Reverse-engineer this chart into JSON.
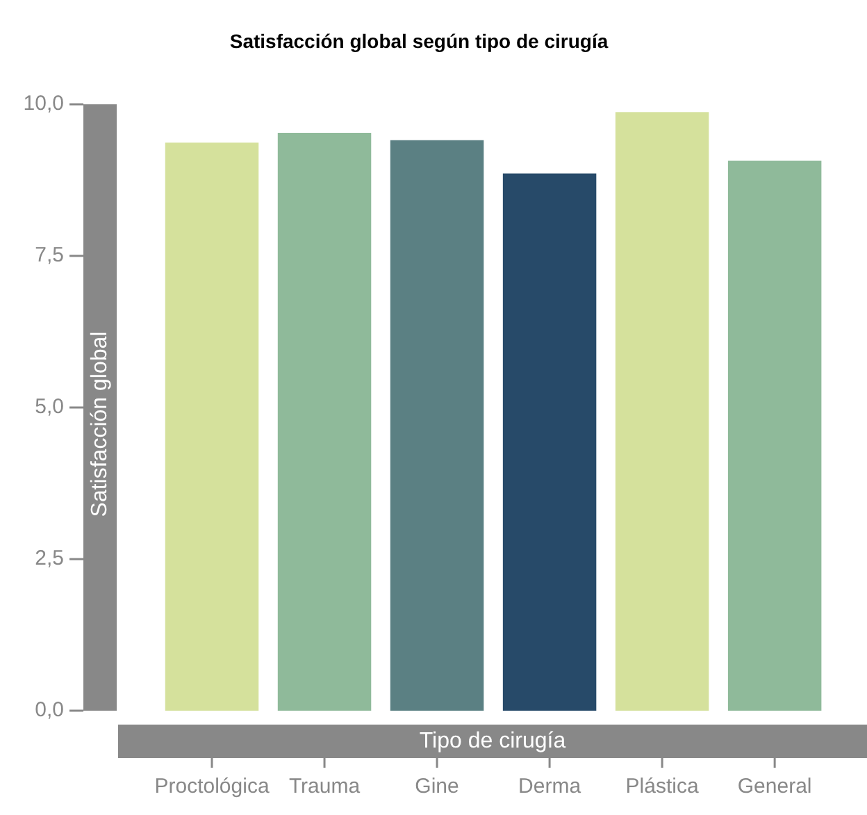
{
  "chart_data": {
    "type": "bar",
    "title": "Satisfacción global según tipo de cirugía",
    "xlabel": "Tipo de cirugía",
    "ylabel": "Satisfacción global",
    "categories": [
      "Proctológica",
      "Trauma",
      "Gine",
      "Derma",
      "Plástica",
      "General"
    ],
    "values": [
      9.37,
      9.53,
      9.41,
      8.86,
      9.87,
      9.07
    ],
    "colors": [
      "#d5e19c",
      "#8fba9a",
      "#5b8083",
      "#274a69",
      "#d5e19c",
      "#8fba9a"
    ],
    "ylim": [
      0,
      10
    ],
    "yticks": [
      {
        "value": 0,
        "label": "0,0"
      },
      {
        "value": 2.5,
        "label": "2,5"
      },
      {
        "value": 5,
        "label": "5,0"
      },
      {
        "value": 7.5,
        "label": "7,5"
      },
      {
        "value": 10,
        "label": "10,0"
      }
    ],
    "grid": false,
    "legend": false
  }
}
